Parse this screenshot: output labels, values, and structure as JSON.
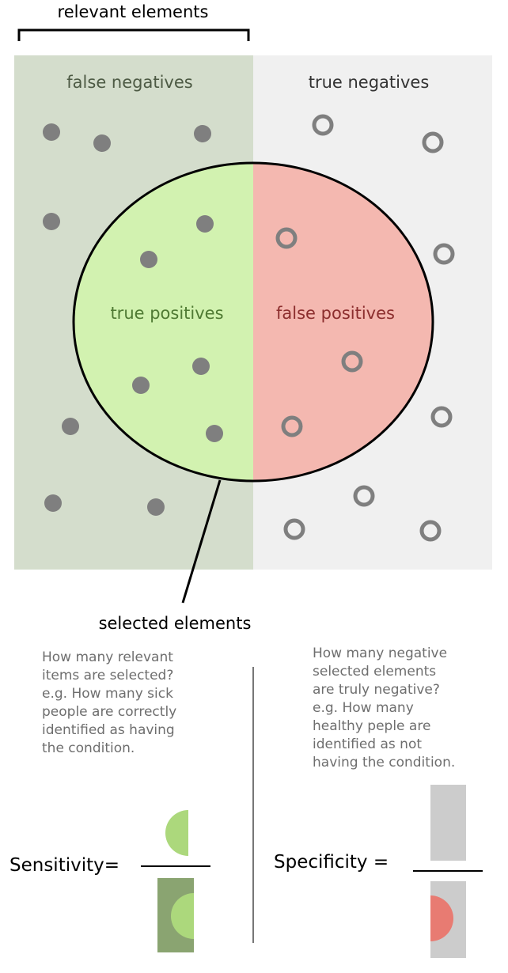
{
  "top_label": "relevant elements",
  "regions": {
    "false_negatives": "false negatives",
    "true_negatives": "true negatives",
    "true_positives": "true positives",
    "false_positives": "false positives"
  },
  "selected_label": "selected elements",
  "sensitivity": {
    "label": "Sensitivity=",
    "description": [
      "How many relevant",
      "items are selected?",
      "e.g. How many sick",
      "people are correctly",
      "identified as having",
      "the condition."
    ]
  },
  "specificity": {
    "label": "Specificity =",
    "description": [
      "How many negative",
      "selected elements",
      "are truly negative?",
      "e.g. How many",
      "healthy peple are",
      "identified as not",
      "having the condition."
    ]
  },
  "colors": {
    "relevant_bg": "#d4ddcc",
    "irrelevant_bg": "#f0f0f0",
    "true_positive_fill": "#d2f2b0",
    "false_positive_fill": "#f4b8b0",
    "dot": "#7f7f7f",
    "fn_text": "#4d5a44",
    "tp_text": "#4f7a33",
    "fp_text": "#8c2e2e",
    "green_half": "#acd87c",
    "dark_green": "#8aa471",
    "gray_bar": "#cccccc",
    "red_half": "#e87b72"
  }
}
